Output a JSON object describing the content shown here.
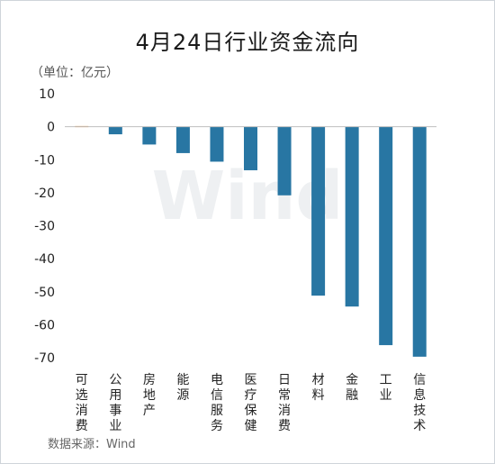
{
  "title": "4月24日行业资金流向",
  "unit_label": "（单位：亿元）",
  "source_label": "数据来源：Wind",
  "watermark": "Wind",
  "colors": {
    "positive": "#e6852e",
    "negative": "#2876a3",
    "axis": "#bfbfbf"
  },
  "chart_data": {
    "type": "bar",
    "title": "4月24日行业资金流向",
    "ylabel": "（单位：亿元）",
    "ylim": [
      -70,
      10
    ],
    "yticks": [
      10,
      0,
      -10,
      -20,
      -30,
      -40,
      -50,
      -60,
      -70
    ],
    "grid": false,
    "categories": [
      "可选消费",
      "公用事业",
      "房地产",
      "能源",
      "电信服务",
      "医疗保健",
      "日常消费",
      "材料",
      "金融",
      "工业",
      "信息技术"
    ],
    "values": [
      0.2,
      -2.3,
      -5.4,
      -8.0,
      -10.6,
      -13.2,
      -20.8,
      -51.2,
      -54.5,
      -66.2,
      -69.7
    ]
  }
}
